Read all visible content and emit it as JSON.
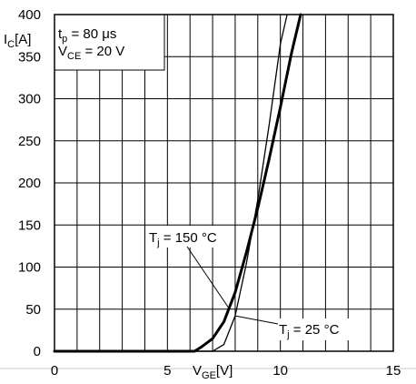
{
  "chart_data": {
    "type": "line",
    "xlim": [
      0,
      15
    ],
    "ylim": [
      0,
      400
    ],
    "x_ticks": [
      0,
      5,
      10,
      15
    ],
    "y_ticks": [
      0,
      50,
      100,
      150,
      200,
      250,
      300,
      350,
      400
    ],
    "x_tick_labels": [
      "0",
      "5",
      "10",
      "15"
    ],
    "y_tick_labels": [
      "0",
      "50",
      "100",
      "150",
      "200",
      "250",
      "300",
      "350",
      "400"
    ],
    "grid": true,
    "xlabel": {
      "main": "V",
      "sub": "GE",
      "rest": "[V]"
    },
    "ylabel": {
      "main": "I",
      "sub": "C",
      "rest": "[A]"
    },
    "conditions": {
      "line1": {
        "main": "t",
        "sub": "p",
        "rest": " = 80 μs"
      },
      "line2": {
        "main": "V",
        "sub": "CE",
        "rest": " = 20 V"
      }
    },
    "series": [
      {
        "name": "Tj = 150 °C",
        "label": {
          "main": "T",
          "sub": "j",
          "rest": " = 150 °C"
        },
        "emphasis": "bold",
        "x": [
          0,
          6.2,
          6.5,
          7.0,
          7.5,
          8.0,
          8.5,
          9.0,
          9.5,
          10.0,
          10.5,
          10.9
        ],
        "y": [
          0,
          0,
          5,
          15,
          35,
          70,
          118,
          170,
          228,
          290,
          355,
          400
        ]
      },
      {
        "name": "Tj = 25 °C",
        "label": {
          "main": "T",
          "sub": "j",
          "rest": " = 25 °C"
        },
        "emphasis": "normal",
        "x": [
          0,
          7.0,
          7.5,
          8.0,
          8.5,
          9.0,
          9.5,
          10.0,
          10.3
        ],
        "y": [
          0,
          0,
          8,
          42,
          105,
          180,
          268,
          365,
          400
        ]
      }
    ]
  }
}
